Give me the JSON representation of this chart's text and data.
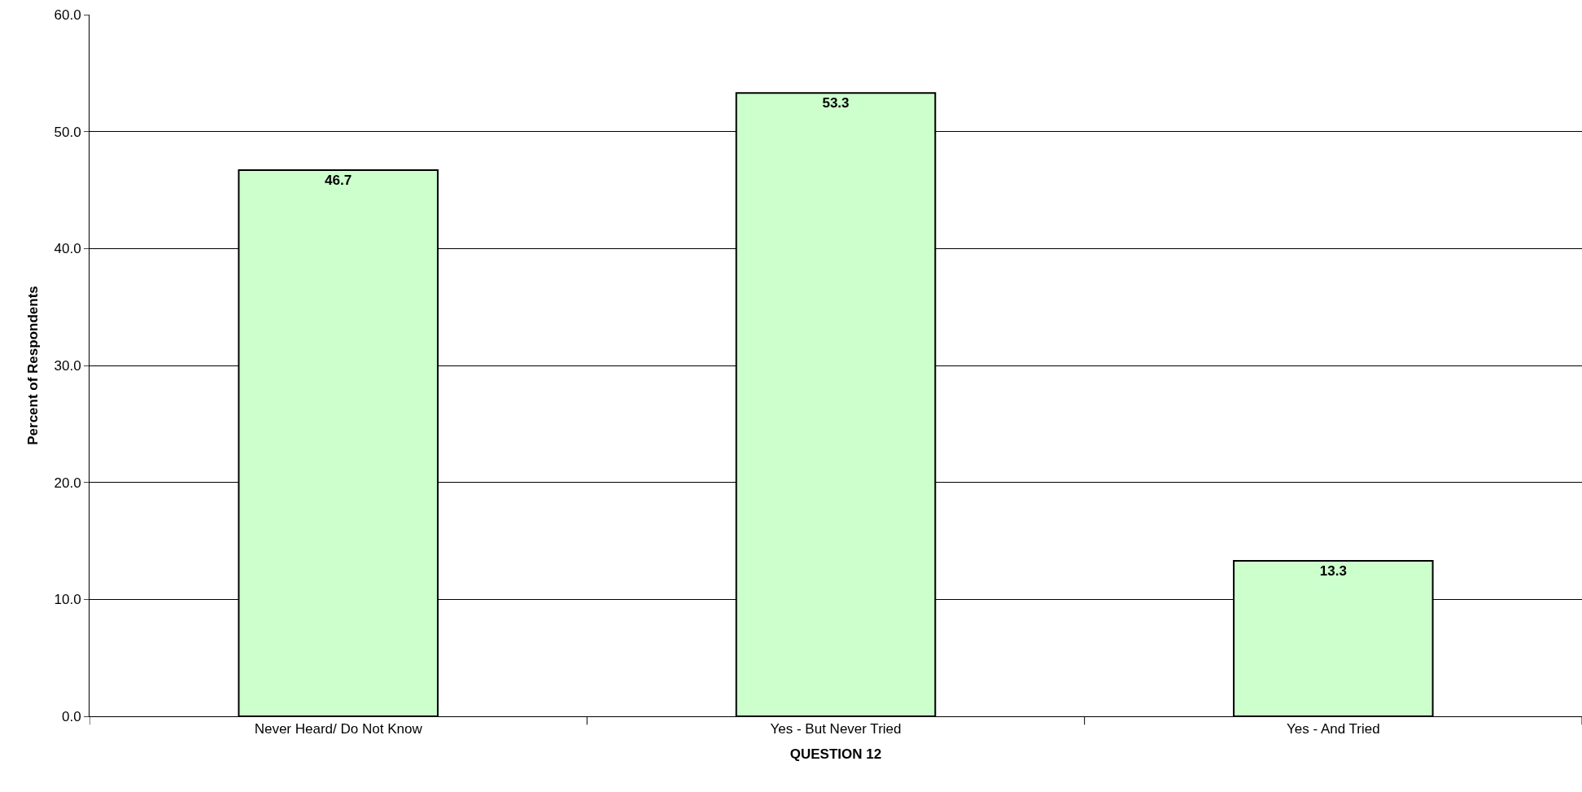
{
  "chart_data": {
    "type": "bar",
    "xlabel": "QUESTION 12",
    "ylabel": "Percent of Respondents",
    "categories": [
      "Never Heard/ Do Not Know",
      "Yes - But Never Tried",
      "Yes - And Tried"
    ],
    "values": [
      46.7,
      53.3,
      13.3
    ],
    "color": "#ccffcc",
    "ylim": [
      0,
      60
    ],
    "yticks": [
      {
        "value": 0,
        "label": "0.0"
      },
      {
        "value": 10,
        "label": "10.0"
      },
      {
        "value": 20,
        "label": "20.0"
      },
      {
        "value": 30,
        "label": "30.0"
      },
      {
        "value": 40,
        "label": "40.0"
      },
      {
        "value": 50,
        "label": "50.0"
      },
      {
        "value": 60,
        "label": "60.0"
      }
    ],
    "grid": "y",
    "data_labels": true,
    "legend": false
  }
}
